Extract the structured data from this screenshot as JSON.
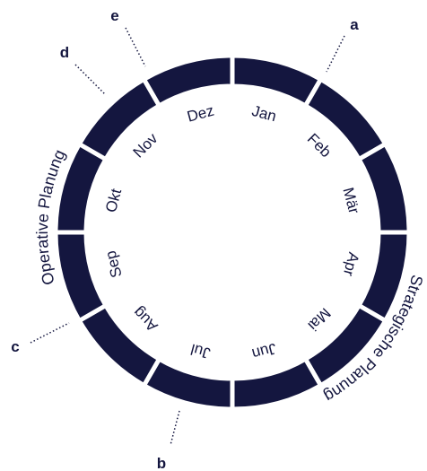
{
  "months": [
    "Jan",
    "Feb",
    "Mär",
    "Apr",
    "Mai",
    "Jun",
    "Jul",
    "Aug",
    "Sep",
    "Okt",
    "Nov",
    "Dez"
  ],
  "outer_labels": [
    "Operative Planung",
    "Strategische Planung"
  ],
  "letters": [
    "a",
    "b",
    "c",
    "d",
    "e"
  ]
}
